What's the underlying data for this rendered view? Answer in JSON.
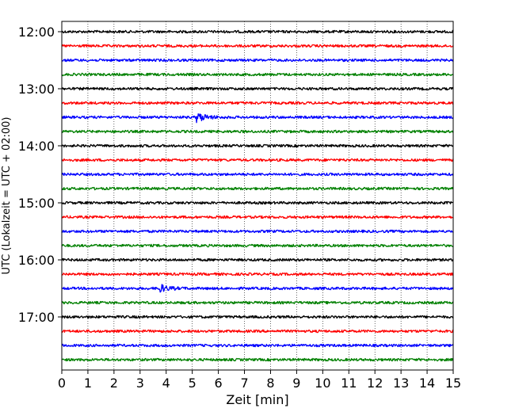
{
  "chart_data": {
    "type": "line",
    "title": "",
    "xlabel": "Zeit  [min]",
    "ylabel": "UTC (Lokalzeit = UTC + 02:00)",
    "xlim": [
      0,
      15
    ],
    "x_ticks": [
      "0",
      "1",
      "2",
      "3",
      "4",
      "5",
      "6",
      "7",
      "8",
      "9",
      "10",
      "11",
      "12",
      "13",
      "14",
      "15"
    ],
    "y_ticks": [
      "12:00",
      "13:00",
      "14:00",
      "15:00",
      "16:00",
      "17:00"
    ],
    "grid": "vertical dotted lines at each minute",
    "trace_interval_min": 15,
    "trace_colors": [
      "#000000",
      "#ff0000",
      "#0000ff",
      "#008000"
    ],
    "traces": [
      {
        "start": "12:00",
        "color": "#000000"
      },
      {
        "start": "12:15",
        "color": "#ff0000"
      },
      {
        "start": "12:30",
        "color": "#0000ff"
      },
      {
        "start": "12:45",
        "color": "#008000"
      },
      {
        "start": "13:00",
        "color": "#000000"
      },
      {
        "start": "13:15",
        "color": "#ff0000"
      },
      {
        "start": "13:30",
        "color": "#0000ff"
      },
      {
        "start": "13:45",
        "color": "#008000"
      },
      {
        "start": "14:00",
        "color": "#000000"
      },
      {
        "start": "14:15",
        "color": "#ff0000"
      },
      {
        "start": "14:30",
        "color": "#0000ff"
      },
      {
        "start": "14:45",
        "color": "#008000"
      },
      {
        "start": "15:00",
        "color": "#000000"
      },
      {
        "start": "15:15",
        "color": "#ff0000"
      },
      {
        "start": "15:30",
        "color": "#0000ff"
      },
      {
        "start": "15:45",
        "color": "#008000"
      },
      {
        "start": "16:00",
        "color": "#000000"
      },
      {
        "start": "16:15",
        "color": "#ff0000"
      },
      {
        "start": "16:30",
        "color": "#0000ff"
      },
      {
        "start": "16:45",
        "color": "#008000"
      },
      {
        "start": "17:00",
        "color": "#000000"
      },
      {
        "start": "17:15",
        "color": "#ff0000"
      },
      {
        "start": "17:30",
        "color": "#0000ff"
      },
      {
        "start": "17:45",
        "color": "#008000"
      }
    ],
    "events": [
      {
        "trace_start": "13:30",
        "x_min": 5.2
      },
      {
        "trace_start": "16:30",
        "x_min": 3.7
      }
    ]
  }
}
